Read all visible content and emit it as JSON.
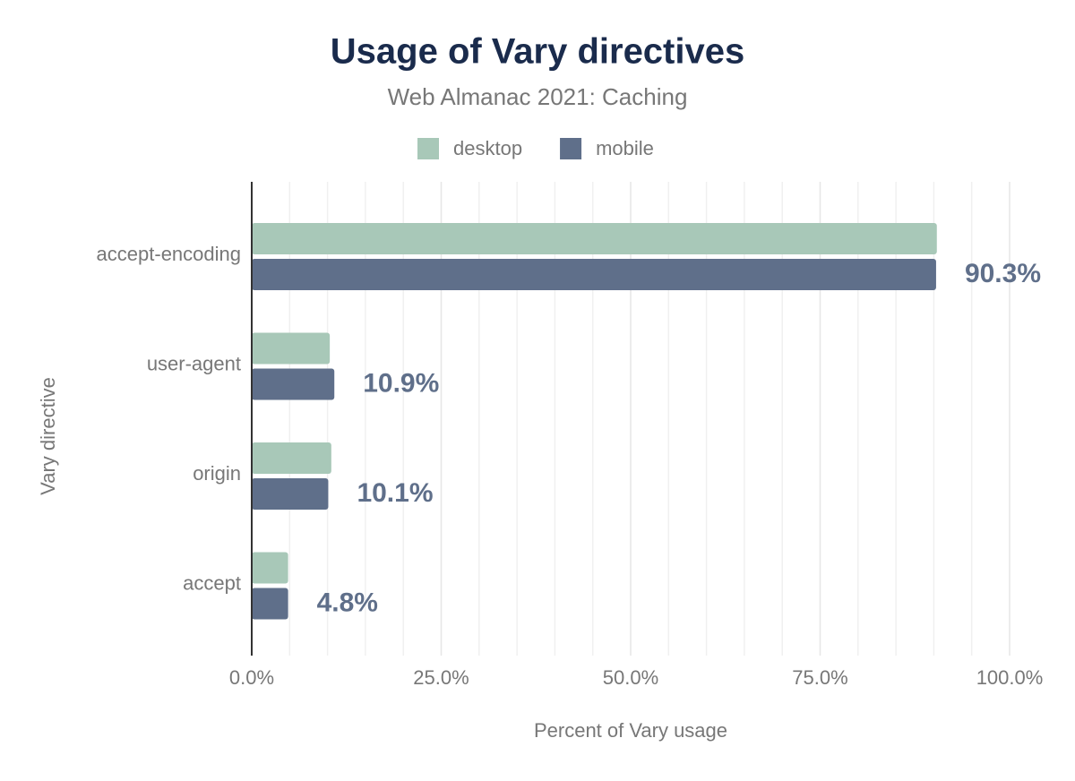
{
  "chart_data": {
    "type": "hbar",
    "title": "Usage of Vary directives",
    "subtitle": "Web Almanac 2021: Caching",
    "x_label": "Percent of Vary usage",
    "y_label": "Vary directive",
    "categories": [
      "accept-encoding",
      "user-agent",
      "origin",
      "accept"
    ],
    "series": [
      {
        "name": "desktop",
        "color": "#a8c8b8",
        "values": [
          90.4,
          10.3,
          10.5,
          4.8
        ]
      },
      {
        "name": "mobile",
        "color": "#5f6f8a",
        "values": [
          90.3,
          10.9,
          10.1,
          4.8
        ],
        "value_labels": [
          "90.3%",
          "10.9%",
          "10.1%",
          "4.8%"
        ]
      }
    ],
    "xlim": [
      0,
      100
    ],
    "xticks": [
      {
        "value": 0,
        "label": "0.0%"
      },
      {
        "value": 25,
        "label": "25.0%"
      },
      {
        "value": 50,
        "label": "50.0%"
      },
      {
        "value": 75,
        "label": "75.0%"
      },
      {
        "value": 100,
        "label": "100.0%"
      }
    ],
    "xminorticks": [
      5,
      10,
      15,
      20,
      30,
      35,
      40,
      45,
      55,
      60,
      65,
      70,
      80,
      85,
      90,
      95
    ],
    "grid": true,
    "legend": "top"
  }
}
